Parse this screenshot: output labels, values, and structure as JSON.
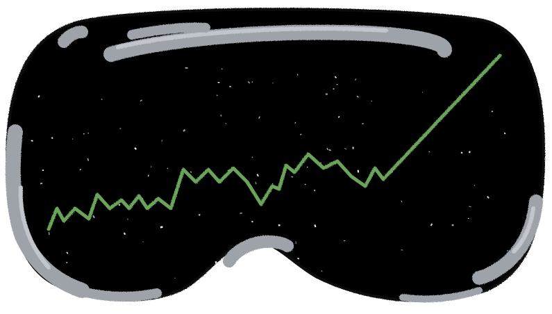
{
  "illustration": {
    "subject": "vr-headset-visor-with-rising-chart-line",
    "colors": {
      "background": "#ffffff",
      "visor_fill": "#000000",
      "visor_outline": "#111111",
      "frame_highlight": "#9ea3aa",
      "frame_highlight_light": "#c2c6cc",
      "chart_line": "#6aa35a",
      "stars": "#ffffff"
    },
    "icons": [
      "headset-visor-icon",
      "rising-trend-line-icon",
      "star-speckle-icon"
    ]
  }
}
